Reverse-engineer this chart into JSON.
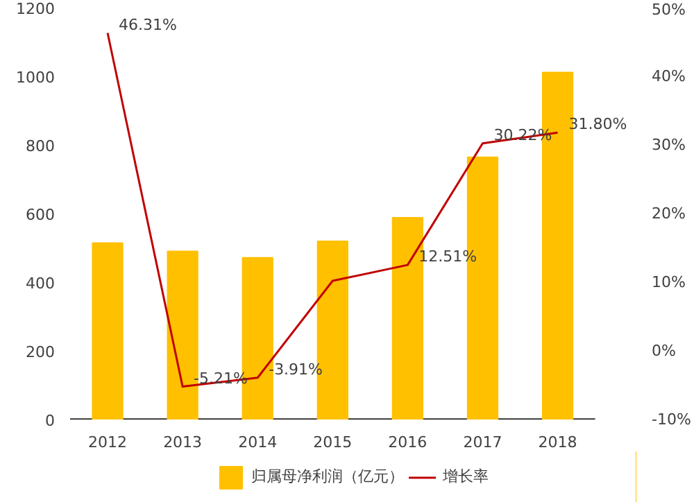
{
  "chart_data": {
    "type": "bar",
    "categories": [
      "2012",
      "2013",
      "2014",
      "2015",
      "2016",
      "2017",
      "2018"
    ],
    "series": [
      {
        "name": "归属母净利润（亿元）",
        "type": "bar",
        "color": "#ffc000",
        "values": [
          514,
          490,
          471,
          519,
          588,
          764,
          1011
        ]
      },
      {
        "name": "增长率",
        "type": "line",
        "axis": "y2",
        "color": "#c00000",
        "values": [
          46.31,
          -5.21,
          -3.91,
          10.2,
          12.51,
          30.22,
          31.8
        ],
        "value_labels": [
          "46.31%",
          "-5.21%",
          "-3.91%",
          null,
          "12.51%",
          "30.22%",
          "31.80%"
        ]
      }
    ],
    "ylim": [
      0,
      1200
    ],
    "yticks": [
      0,
      200,
      400,
      600,
      800,
      1000,
      1200
    ],
    "y2lim": [
      -10,
      50
    ],
    "y2ticks": [
      {
        "value": -10,
        "label": "-10%"
      },
      {
        "value": 0,
        "label": "0%"
      },
      {
        "value": 10,
        "label": "10%"
      },
      {
        "value": 20,
        "label": "20%"
      },
      {
        "value": 30,
        "label": "30%"
      },
      {
        "value": 40,
        "label": "40%"
      },
      {
        "value": 50,
        "label": "50%"
      }
    ],
    "legend": "bottom",
    "grid": false
  }
}
